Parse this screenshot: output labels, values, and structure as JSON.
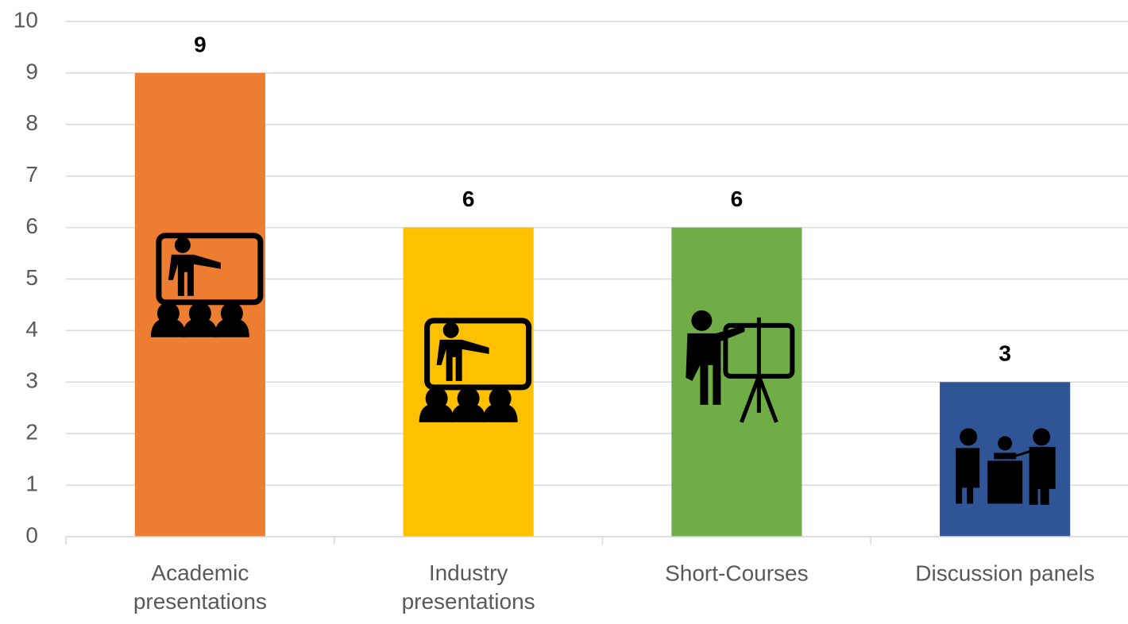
{
  "chart_data": {
    "type": "bar",
    "categories": [
      "Academic presentations",
      "Industry presentations",
      "Short-Courses",
      "Discussion panels"
    ],
    "values": [
      9,
      6,
      6,
      3
    ],
    "colors": [
      "#ed7d31",
      "#ffc000",
      "#70ad47",
      "#2f5597"
    ],
    "ylim": [
      0,
      10
    ],
    "yticks": [
      0,
      1,
      2,
      3,
      4,
      5,
      6,
      7,
      8,
      9,
      10
    ],
    "grid": true
  }
}
